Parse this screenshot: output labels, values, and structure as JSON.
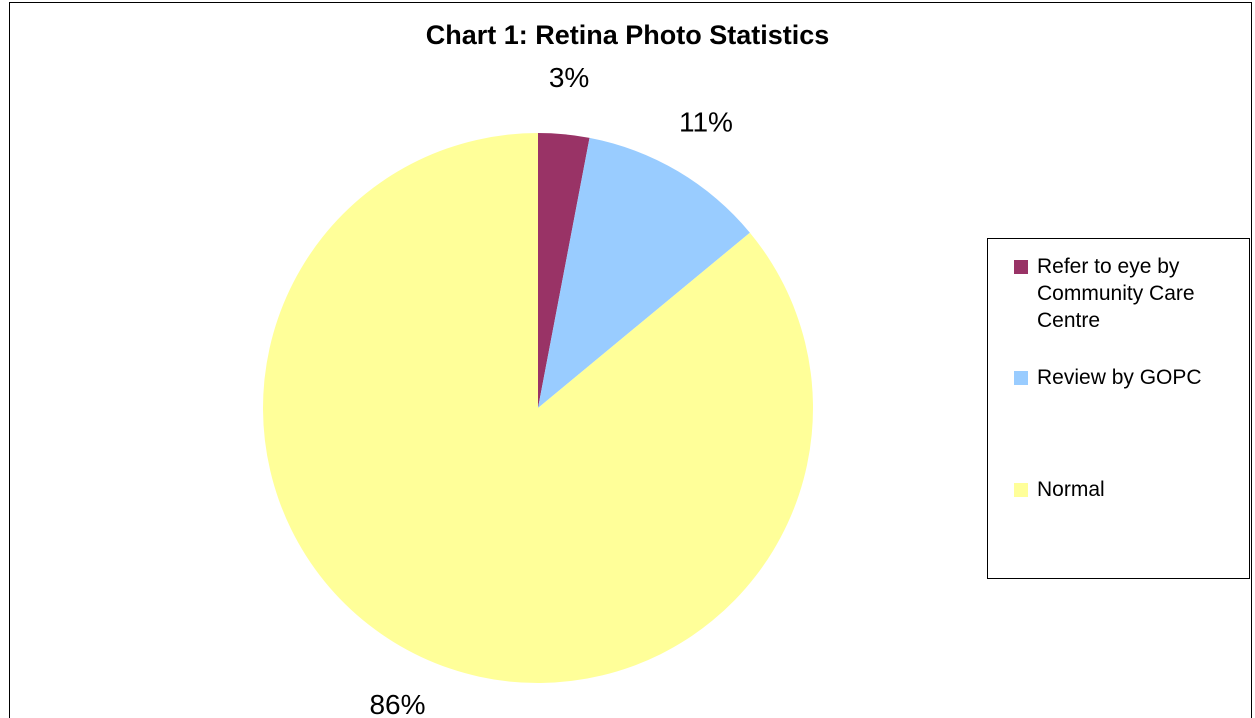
{
  "chart_data": {
    "type": "pie",
    "title": "Chart 1:  Retina Photo Statistics",
    "categories": [
      "Refer to eye by Community Care Centre",
      "Review by GOPC",
      "Normal"
    ],
    "values": [
      3,
      11,
      86
    ],
    "labels": [
      "3%",
      "11%",
      "86%"
    ],
    "colors": [
      "#993366",
      "#99ccff",
      "#ffff99"
    ],
    "legend_position": "right",
    "start_angle_deg": 0,
    "direction": "clockwise"
  }
}
